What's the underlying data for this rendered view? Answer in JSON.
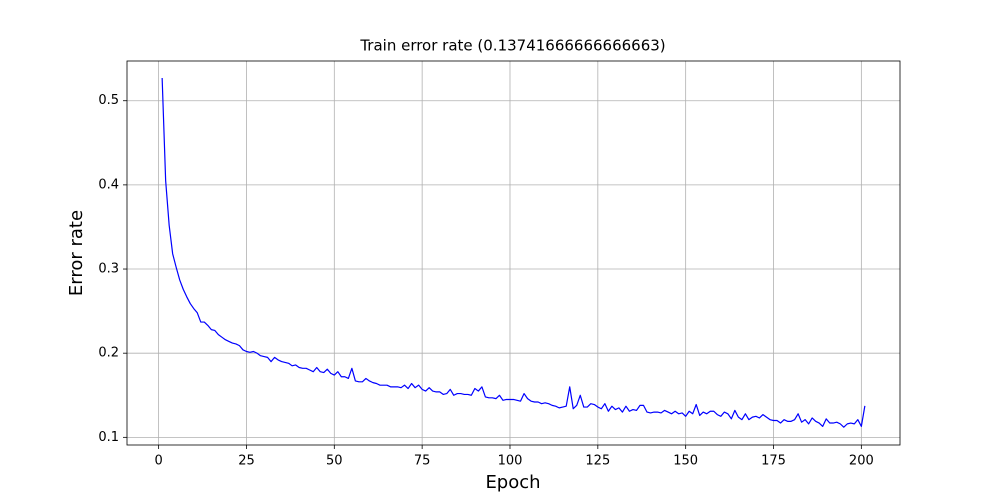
{
  "chart_data": {
    "type": "line",
    "title": "Train error rate (0.13741666666666663)",
    "x_label": "Epoch",
    "y_label": "Error rate",
    "x": [
      1,
      2,
      3,
      4,
      5,
      6,
      7,
      8,
      9,
      10,
      11,
      12,
      13,
      14,
      15,
      16,
      17,
      18,
      19,
      20,
      21,
      22,
      23,
      24,
      25,
      26,
      27,
      28,
      29,
      30,
      31,
      32,
      33,
      34,
      35,
      36,
      37,
      38,
      39,
      40,
      41,
      42,
      43,
      44,
      45,
      46,
      47,
      48,
      49,
      50,
      51,
      52,
      53,
      54,
      55,
      56,
      57,
      58,
      59,
      60,
      61,
      62,
      63,
      64,
      65,
      66,
      67,
      68,
      69,
      70,
      71,
      72,
      73,
      74,
      75,
      76,
      77,
      78,
      79,
      80,
      81,
      82,
      83,
      84,
      85,
      86,
      87,
      88,
      89,
      90,
      91,
      92,
      93,
      94,
      95,
      96,
      97,
      98,
      99,
      100,
      101,
      102,
      103,
      104,
      105,
      106,
      107,
      108,
      109,
      110,
      111,
      112,
      113,
      114,
      115,
      116,
      117,
      118,
      119,
      120,
      121,
      122,
      123,
      124,
      125,
      126,
      127,
      128,
      129,
      130,
      131,
      132,
      133,
      134,
      135,
      136,
      137,
      138,
      139,
      140,
      141,
      142,
      143,
      144,
      145,
      146,
      147,
      148,
      149,
      150,
      151,
      152,
      153,
      154,
      155,
      156,
      157,
      158,
      159,
      160,
      161,
      162,
      163,
      164,
      165,
      166,
      167,
      168,
      169,
      170,
      171,
      172,
      173,
      174,
      175,
      176,
      177,
      178,
      179,
      180,
      181,
      182,
      183,
      184,
      185,
      186,
      187,
      188,
      189,
      190,
      191,
      192,
      193,
      194,
      195,
      196,
      197,
      198,
      199,
      200,
      201
    ],
    "series": [
      {
        "name": "Train error rate",
        "color": "#0000ff",
        "values": [
          0.527,
          0.405,
          0.352,
          0.318,
          0.302,
          0.287,
          0.276,
          0.267,
          0.259,
          0.253,
          0.248,
          0.237,
          0.237,
          0.233,
          0.228,
          0.227,
          0.222,
          0.219,
          0.216,
          0.214,
          0.212,
          0.211,
          0.209,
          0.204,
          0.202,
          0.201,
          0.202,
          0.2,
          0.197,
          0.196,
          0.195,
          0.19,
          0.195,
          0.192,
          0.19,
          0.189,
          0.188,
          0.185,
          0.186,
          0.183,
          0.182,
          0.182,
          0.18,
          0.178,
          0.183,
          0.178,
          0.177,
          0.181,
          0.176,
          0.174,
          0.178,
          0.172,
          0.172,
          0.17,
          0.182,
          0.167,
          0.166,
          0.166,
          0.17,
          0.167,
          0.165,
          0.164,
          0.162,
          0.162,
          0.162,
          0.16,
          0.16,
          0.16,
          0.159,
          0.162,
          0.158,
          0.164,
          0.159,
          0.162,
          0.157,
          0.155,
          0.159,
          0.155,
          0.154,
          0.154,
          0.151,
          0.152,
          0.157,
          0.15,
          0.152,
          0.152,
          0.151,
          0.151,
          0.15,
          0.158,
          0.155,
          0.16,
          0.148,
          0.147,
          0.147,
          0.146,
          0.15,
          0.144,
          0.145,
          0.145,
          0.145,
          0.144,
          0.143,
          0.152,
          0.146,
          0.143,
          0.142,
          0.142,
          0.14,
          0.141,
          0.14,
          0.138,
          0.137,
          0.135,
          0.136,
          0.137,
          0.16,
          0.134,
          0.138,
          0.15,
          0.136,
          0.136,
          0.14,
          0.139,
          0.136,
          0.134,
          0.14,
          0.131,
          0.137,
          0.133,
          0.135,
          0.13,
          0.137,
          0.131,
          0.133,
          0.132,
          0.138,
          0.138,
          0.13,
          0.129,
          0.13,
          0.13,
          0.129,
          0.132,
          0.13,
          0.128,
          0.131,
          0.128,
          0.129,
          0.125,
          0.131,
          0.128,
          0.139,
          0.126,
          0.13,
          0.128,
          0.131,
          0.131,
          0.127,
          0.125,
          0.13,
          0.128,
          0.122,
          0.132,
          0.124,
          0.121,
          0.128,
          0.121,
          0.124,
          0.125,
          0.123,
          0.127,
          0.124,
          0.121,
          0.12,
          0.12,
          0.117,
          0.121,
          0.119,
          0.119,
          0.121,
          0.128,
          0.118,
          0.121,
          0.116,
          0.123,
          0.119,
          0.117,
          0.113,
          0.122,
          0.117,
          0.117,
          0.118,
          0.116,
          0.112,
          0.116,
          0.117,
          0.116,
          0.121,
          0.113,
          0.1374
        ]
      }
    ],
    "xlim": [
      -9,
      211
    ],
    "ylim": [
      0.0909,
      0.5472
    ],
    "xticks": [
      0,
      25,
      50,
      75,
      100,
      125,
      150,
      175,
      200
    ],
    "yticks": [
      0.1,
      0.2,
      0.3,
      0.4,
      0.5
    ],
    "grid": true
  }
}
